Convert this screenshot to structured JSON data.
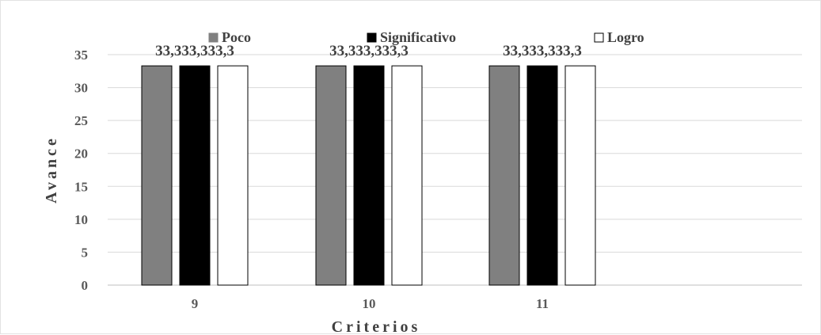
{
  "chart_data": {
    "type": "bar",
    "title": "",
    "xlabel": "Criterios",
    "ylabel": "Avance",
    "categories": [
      "9",
      "10",
      "11"
    ],
    "series": [
      {
        "name": "Poco",
        "values": [
          33.3,
          33.3,
          33.3
        ],
        "labels": [
          "33,3",
          "33,3",
          "33,3"
        ],
        "color": "#808080"
      },
      {
        "name": "Significativo",
        "values": [
          33.3,
          33.3,
          33.3
        ],
        "labels": [
          "33,3",
          "33,3",
          "33,3"
        ],
        "color": "#000000"
      },
      {
        "name": "Logro",
        "values": [
          33.3,
          33.3,
          33.3
        ],
        "labels": [
          "33,3",
          "33,3",
          "33,3"
        ],
        "color": "#ffffff"
      }
    ],
    "ylim": [
      0,
      35
    ],
    "yticks": [
      "0",
      "5",
      "10",
      "15",
      "20",
      "25",
      "30",
      "35"
    ],
    "grid": true,
    "legend": "top"
  }
}
